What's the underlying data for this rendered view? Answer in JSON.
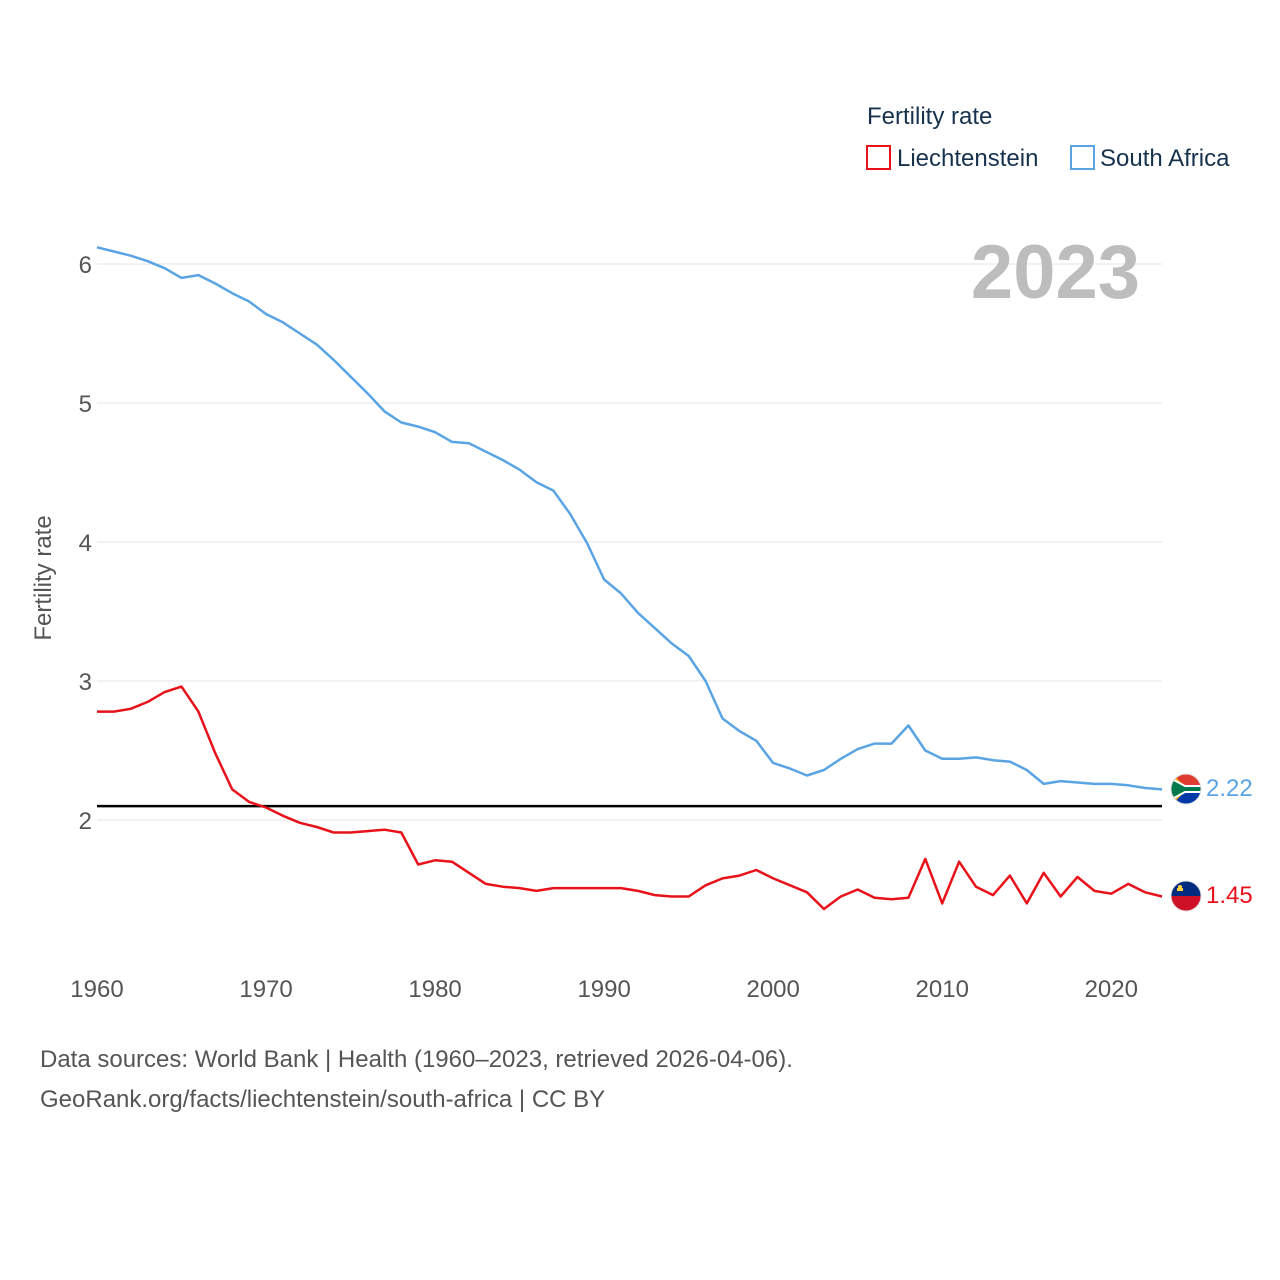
{
  "legend": {
    "title": "Fertility rate",
    "items": [
      {
        "label": "Liechtenstein",
        "color": "#e8121a"
      },
      {
        "label": "South Africa",
        "color": "#5aa4e4"
      }
    ]
  },
  "year_label": "2023",
  "source": {
    "line1": "Data sources: World Bank | Health (1960–2023, retrieved 2026-04-06).",
    "line2": "GeoRank.org/facts/liechtenstein/south-africa | CC BY"
  },
  "chart_data": {
    "type": "line",
    "title": "Fertility rate",
    "xlabel": "",
    "ylabel": "Fertility rate",
    "xlim": [
      1960,
      2023
    ],
    "ylim": [
      1.2,
      6.2
    ],
    "xticks": [
      1960,
      1970,
      1980,
      1990,
      2000,
      2010,
      2020
    ],
    "yticks": [
      2,
      3,
      4,
      5,
      6
    ],
    "grid": true,
    "reference_line": {
      "y": 2.1,
      "color": "#000000"
    },
    "x": [
      1960,
      1961,
      1962,
      1963,
      1964,
      1965,
      1966,
      1967,
      1968,
      1969,
      1970,
      1971,
      1972,
      1973,
      1974,
      1975,
      1976,
      1977,
      1978,
      1979,
      1980,
      1981,
      1982,
      1983,
      1984,
      1985,
      1986,
      1987,
      1988,
      1989,
      1990,
      1991,
      1992,
      1993,
      1994,
      1995,
      1996,
      1997,
      1998,
      1999,
      2000,
      2001,
      2002,
      2003,
      2004,
      2005,
      2006,
      2007,
      2008,
      2009,
      2010,
      2011,
      2012,
      2013,
      2014,
      2015,
      2016,
      2017,
      2018,
      2019,
      2020,
      2021,
      2022,
      2023
    ],
    "series": [
      {
        "name": "South Africa",
        "color": "#5aa4e4",
        "end_label": "2.22",
        "values": [
          6.12,
          6.09,
          6.06,
          6.02,
          5.97,
          5.9,
          5.92,
          5.86,
          5.79,
          5.73,
          5.64,
          5.58,
          5.5,
          5.42,
          5.31,
          5.19,
          5.07,
          4.94,
          4.86,
          4.83,
          4.79,
          4.72,
          4.71,
          4.65,
          4.59,
          4.52,
          4.43,
          4.37,
          4.2,
          3.99,
          3.73,
          3.63,
          3.49,
          3.38,
          3.27,
          3.18,
          3.0,
          2.73,
          2.64,
          2.57,
          2.41,
          2.37,
          2.32,
          2.36,
          2.44,
          2.51,
          2.55,
          2.55,
          2.68,
          2.5,
          2.44,
          2.44,
          2.45,
          2.43,
          2.42,
          2.36,
          2.26,
          2.28,
          2.27,
          2.26,
          2.26,
          2.25,
          2.23,
          2.22
        ]
      },
      {
        "name": "Liechtenstein",
        "color": "#e8121a",
        "end_label": "1.45",
        "values": [
          2.78,
          2.78,
          2.8,
          2.85,
          2.92,
          2.96,
          2.78,
          2.48,
          2.22,
          2.13,
          2.09,
          2.03,
          1.98,
          1.95,
          1.91,
          1.91,
          1.92,
          1.93,
          1.91,
          1.68,
          1.71,
          1.7,
          1.62,
          1.54,
          1.52,
          1.51,
          1.49,
          1.51,
          1.51,
          1.51,
          1.51,
          1.51,
          1.49,
          1.46,
          1.45,
          1.45,
          1.53,
          1.58,
          1.6,
          1.64,
          1.58,
          1.53,
          1.48,
          1.36,
          1.45,
          1.5,
          1.44,
          1.43,
          1.44,
          1.72,
          1.4,
          1.7,
          1.52,
          1.46,
          1.6,
          1.4,
          1.62,
          1.45,
          1.59,
          1.49,
          1.47,
          1.54,
          1.48,
          1.45
        ]
      }
    ]
  }
}
